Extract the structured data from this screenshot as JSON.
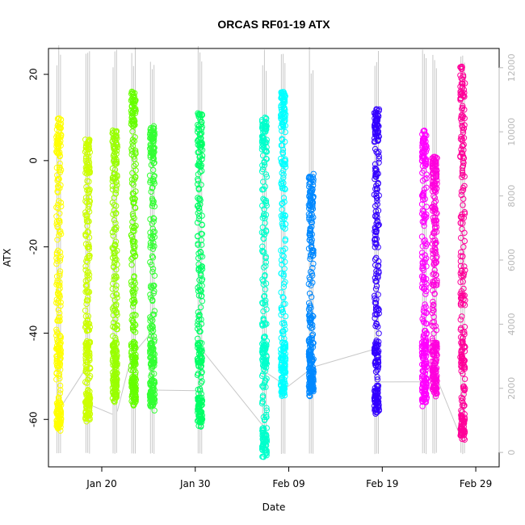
{
  "chart_data": {
    "type": "scatter",
    "title": "ORCAS RF01-19 ATX",
    "xlabel": "Date",
    "ylabel": "ATX",
    "x_ticks": [
      "Jan 20",
      "Jan 30",
      "Feb 09",
      "Feb 19",
      "Feb 29"
    ],
    "y_ticks": [
      -60,
      -40,
      -20,
      0,
      20
    ],
    "y2_ticks": [
      0,
      2000,
      4000,
      6000,
      8000,
      10000,
      12000
    ],
    "xlim_days_from_jan1": [
      14.3,
      62.5
    ],
    "ylim": [
      -71,
      26
    ],
    "y2lim": [
      -450,
      12600
    ],
    "secondary_axis_color": "#b8b8b8",
    "altitude_trace_color": "#c8c8c8",
    "series": [
      {
        "x_day": 15.4,
        "color": "#ffff00",
        "ymin": -63,
        "ymax": 10
      },
      {
        "x_day": 18.5,
        "color": "#ccff00",
        "ymin": -61,
        "ymax": 5
      },
      {
        "x_day": 21.4,
        "color": "#99ff00",
        "ymin": -56,
        "ymax": 7
      },
      {
        "x_day": 23.4,
        "color": "#66ff00",
        "ymin": -57,
        "ymax": 16
      },
      {
        "x_day": 25.4,
        "color": "#33ff33",
        "ymin": -58,
        "ymax": 8
      },
      {
        "x_day": 30.5,
        "color": "#00ff66",
        "ymin": -62,
        "ymax": 11
      },
      {
        "x_day": 37.4,
        "color": "#00ffcc",
        "ymin": -69,
        "ymax": 10
      },
      {
        "x_day": 39.4,
        "color": "#00ffff",
        "ymin": -55,
        "ymax": 16
      },
      {
        "x_day": 42.4,
        "color": "#0088ff",
        "ymin": -55,
        "ymax": -3
      },
      {
        "x_day": 49.4,
        "color": "#3300ff",
        "ymin": -59,
        "ymax": 12
      },
      {
        "x_day": 54.5,
        "color": "#ff00ff",
        "ymin": -57,
        "ymax": 7
      },
      {
        "x_day": 55.6,
        "color": "#ff00dd",
        "ymin": -55,
        "ymax": 1
      },
      {
        "x_day": 58.6,
        "color": "#ff0099",
        "ymin": -66,
        "ymax": 22
      }
    ]
  }
}
